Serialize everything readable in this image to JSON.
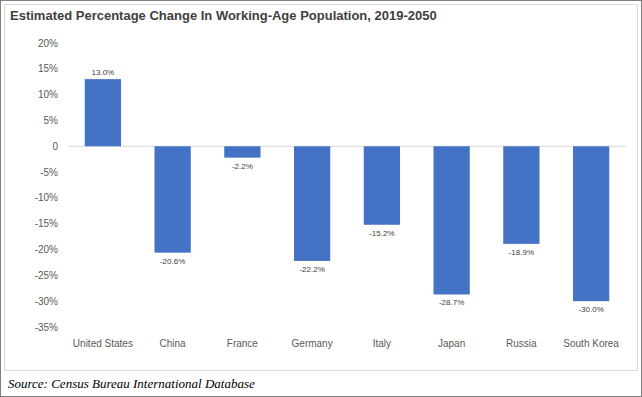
{
  "chart_data": {
    "type": "bar",
    "title": "Estimated Percentage Change In Working-Age Population, 2019-2050",
    "source": "Source: Census Bureau International Database",
    "categories": [
      "United States",
      "China",
      "France",
      "Germany",
      "Italy",
      "Japan",
      "Russia",
      "South Korea"
    ],
    "values": [
      13.0,
      -20.6,
      -2.2,
      -22.2,
      -15.2,
      -28.7,
      -18.9,
      -30.0
    ],
    "value_labels": [
      "13.0%",
      "-20.6%",
      "-2.2%",
      "-22.2%",
      "-15.2%",
      "-28.7%",
      "-18.9%",
      "-30.0%"
    ],
    "color": "#4472c4",
    "ylim": [
      -35,
      20
    ],
    "yticks": [
      {
        "value": -35,
        "label": "-35%"
      },
      {
        "value": -30,
        "label": "-30%"
      },
      {
        "value": -25,
        "label": "-25%"
      },
      {
        "value": -20,
        "label": "-20%"
      },
      {
        "value": -15,
        "label": "-15%"
      },
      {
        "value": -10,
        "label": "-10%"
      },
      {
        "value": -5,
        "label": "-5%"
      },
      {
        "value": 0,
        "label": "0"
      },
      {
        "value": 5,
        "label": "5%"
      },
      {
        "value": 10,
        "label": "10%"
      },
      {
        "value": 15,
        "label": "15%"
      },
      {
        "value": 20,
        "label": "20%"
      }
    ],
    "grid": false,
    "data_labels": true
  }
}
